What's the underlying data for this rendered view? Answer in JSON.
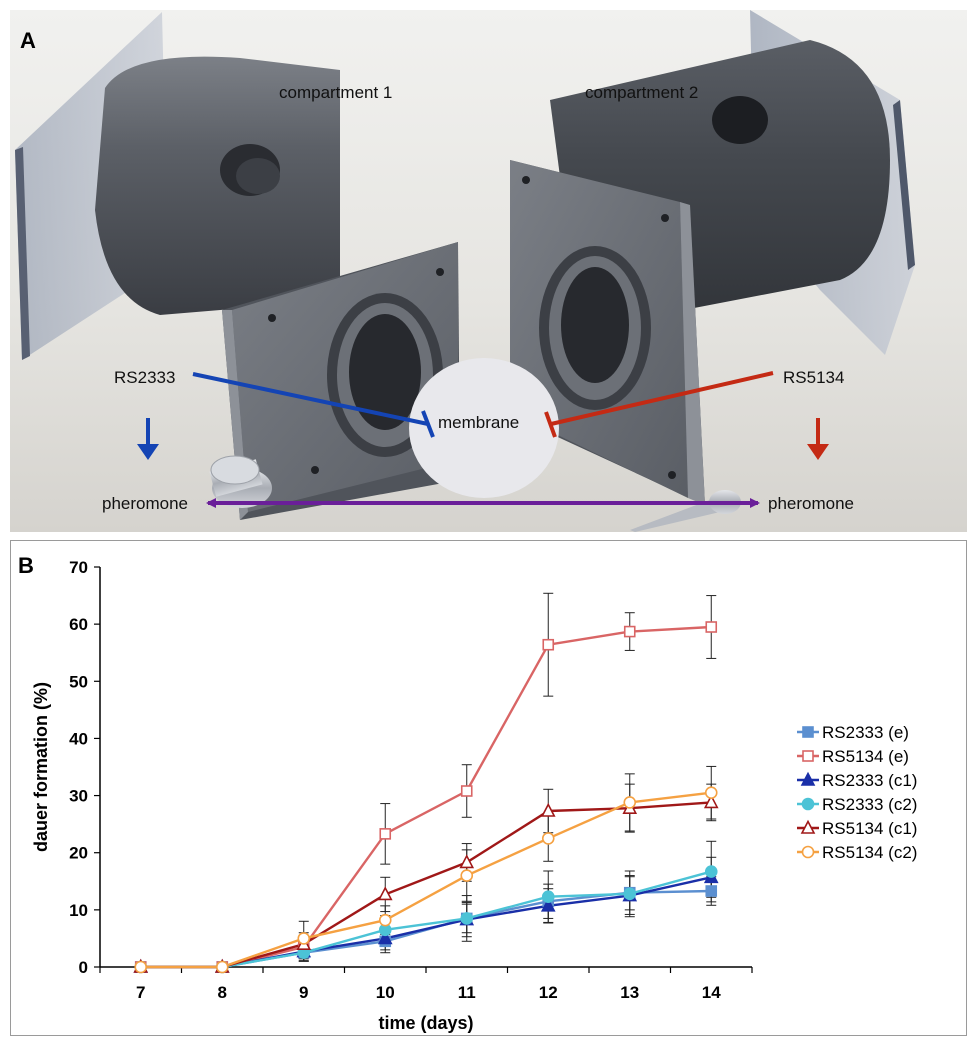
{
  "panel_a": {
    "label": "A",
    "compartment_1": "compartment 1",
    "compartment_2": "compartment 2",
    "strain_left": "RS2333",
    "strain_right": "RS5134",
    "membrane": "membrane",
    "pheromone_left": "pheromone",
    "pheromone_right": "pheromone",
    "colors": {
      "blue": "#1444b4",
      "red": "#c42a14",
      "purple": "#6a1f99"
    }
  },
  "panel_b": {
    "label": "B"
  },
  "chart_data": {
    "type": "line",
    "xlabel": "time (days)",
    "ylabel": "dauer formation (%)",
    "x": [
      7,
      8,
      9,
      10,
      11,
      12,
      13,
      14
    ],
    "xlim": [
      7,
      14
    ],
    "ylim": [
      0,
      70
    ],
    "yticks": [
      0,
      10,
      20,
      30,
      40,
      50,
      60,
      70
    ],
    "grid": false,
    "legend_position": "right",
    "series": [
      {
        "name": "RS2333 (e)",
        "color": "#5b8fd0",
        "marker": "square-filled",
        "values": [
          0,
          0,
          2.5,
          4.5,
          8.5,
          11.5,
          13,
          13.3
        ],
        "errors": [
          0,
          0,
          1.5,
          2,
          2.5,
          3,
          3,
          2.5
        ]
      },
      {
        "name": "RS5134 (e)",
        "color": "#d96565",
        "marker": "square-open",
        "values": [
          0,
          0,
          3.5,
          23.3,
          30.8,
          56.4,
          58.7,
          59.5
        ],
        "errors": [
          0,
          0,
          2,
          5.3,
          4.6,
          9,
          3.3,
          5.5
        ]
      },
      {
        "name": "RS2333 (c1)",
        "color": "#1a2fa8",
        "marker": "triangle-filled",
        "values": [
          0,
          0,
          2.7,
          5,
          8.3,
          10.7,
          12.5,
          15.7
        ],
        "errors": [
          0,
          0,
          1.5,
          2,
          3,
          3,
          3.3,
          3.5
        ]
      },
      {
        "name": "RS2333 (c2)",
        "color": "#4cc3d6",
        "marker": "circle-filled",
        "values": [
          0,
          0,
          2.5,
          6.5,
          8.5,
          12.3,
          12.8,
          16.7
        ],
        "errors": [
          0,
          0,
          1.5,
          2.5,
          4,
          4.5,
          4,
          5.3
        ]
      },
      {
        "name": "RS5134 (c1)",
        "color": "#a01818",
        "marker": "triangle-open",
        "values": [
          0,
          0,
          4,
          12.7,
          18.3,
          27.3,
          27.8,
          28.8
        ],
        "errors": [
          0,
          0,
          2,
          3,
          3.3,
          3.8,
          4.2,
          3.2
        ]
      },
      {
        "name": "RS5134 (c2)",
        "color": "#f5a142",
        "marker": "circle-open",
        "values": [
          0,
          0,
          5,
          8.2,
          16,
          22.5,
          28.8,
          30.5
        ],
        "errors": [
          0,
          0,
          3,
          2.5,
          4.5,
          4,
          5,
          4.6
        ]
      }
    ]
  }
}
